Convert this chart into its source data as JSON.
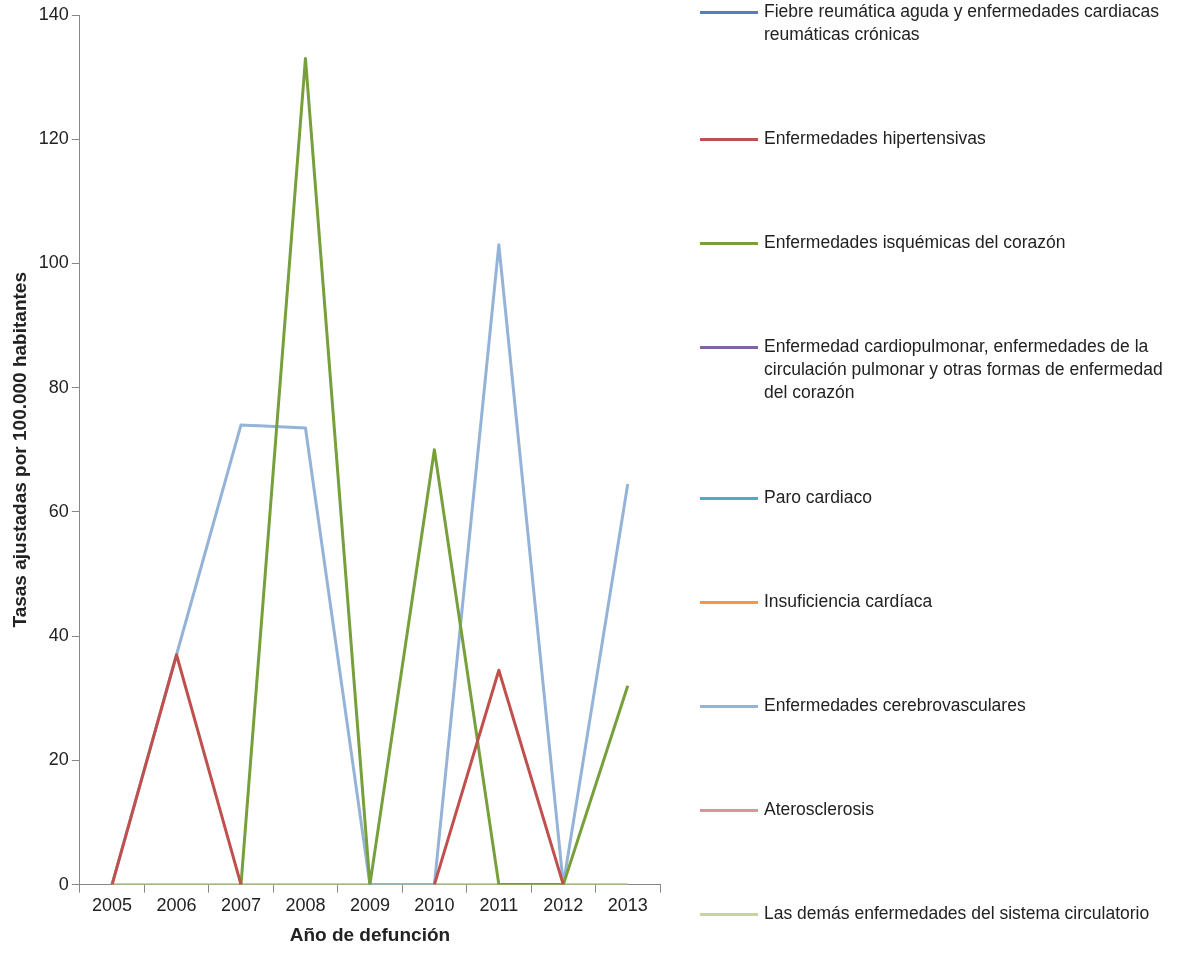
{
  "chart_data": {
    "type": "line",
    "xlabel": "Año de defunción",
    "ylabel": "Tasas ajustadas por 100.000 habitantes",
    "categories": [
      "2005",
      "2006",
      "2007",
      "2008",
      "2009",
      "2010",
      "2011",
      "2012",
      "2013"
    ],
    "ylim": [
      0,
      140
    ],
    "yticks": [
      0,
      20,
      40,
      60,
      80,
      100,
      120,
      140
    ],
    "grid": false,
    "legend": "right",
    "marker": "none",
    "line_style": "solid",
    "series": [
      {
        "name": "Fiebre reumática aguda y enfermedades cardiacas reumáticas crónicas",
        "color": "#4f81bd",
        "values": [
          null,
          null,
          null,
          null,
          null,
          null,
          null,
          null,
          null
        ]
      },
      {
        "name": "Enfermedades hipertensivas",
        "color": "#c0504d",
        "values": [
          0,
          37,
          0,
          null,
          null,
          0,
          34.5,
          0,
          null
        ]
      },
      {
        "name": "Enfermedades isquémicas del corazón",
        "color": "#77a03c",
        "values": [
          null,
          null,
          0,
          133,
          0,
          70,
          0,
          0,
          32
        ]
      },
      {
        "name": "Enfermedad cardiopulmonar, enfermedades de la circulación pulmonar y otras formas de enfermedad del corazón",
        "color": "#8064a2",
        "values": [
          null,
          null,
          null,
          null,
          null,
          null,
          null,
          null,
          null
        ]
      },
      {
        "name": "Paro cardiaco",
        "color": "#4bacc6",
        "values": [
          null,
          null,
          null,
          null,
          null,
          null,
          null,
          null,
          null
        ]
      },
      {
        "name": "Insuficiencia cardíaca",
        "color": "#f79646",
        "values": [
          null,
          null,
          null,
          null,
          null,
          null,
          null,
          null,
          null
        ]
      },
      {
        "name": "Enfermedades cerebrovasculares",
        "color": "#95b3d7",
        "values": [
          0,
          37,
          74,
          73.5,
          0,
          0,
          103,
          0,
          64.5
        ]
      },
      {
        "name": "Aterosclerosis",
        "color": "#d99694",
        "values": [
          null,
          null,
          null,
          null,
          null,
          null,
          null,
          null,
          null
        ]
      },
      {
        "name": "Las demás enfermedades del sistema circulatorio",
        "color": "#c3d69b",
        "values": [
          0,
          0,
          0,
          0,
          0,
          0,
          0,
          0,
          0
        ]
      }
    ]
  }
}
